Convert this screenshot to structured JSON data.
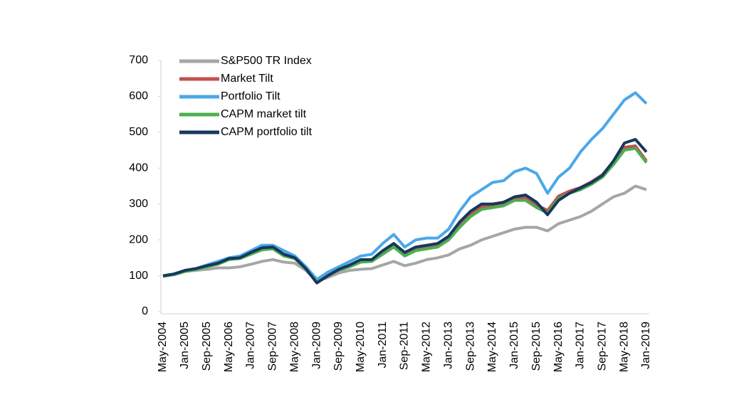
{
  "chart_data": {
    "type": "line",
    "categories": [
      "May-2004",
      null,
      "Jan-2005",
      null,
      "Sep-2005",
      null,
      "May-2006",
      null,
      "Jan-2007",
      null,
      "Sep-2007",
      null,
      "May-2008",
      null,
      "Jan-2009",
      null,
      "Sep-2009",
      null,
      "May-2010",
      null,
      "Jan-2011",
      null,
      "Sep-2011",
      null,
      "May-2012",
      null,
      "Jan-2013",
      null,
      "Sep-2013",
      null,
      "May-2014",
      null,
      "Jan-2015",
      null,
      "Sep-2015",
      null,
      "May-2016",
      null,
      "Jan-2017",
      null,
      "Sep-2017",
      null,
      "May-2018",
      null,
      "Jan-2019"
    ],
    "series": [
      {
        "name": "S&P500 TR Index",
        "color": "#a6a6a6",
        "values": [
          100,
          103,
          112,
          115,
          118,
          122,
          122,
          125,
          132,
          140,
          145,
          138,
          135,
          115,
          85,
          95,
          108,
          115,
          118,
          120,
          130,
          140,
          128,
          135,
          145,
          150,
          158,
          175,
          185,
          200,
          210,
          220,
          230,
          235,
          235,
          225,
          245,
          255,
          265,
          280,
          300,
          320,
          330,
          350,
          340
        ]
      },
      {
        "name": "Market Tilt",
        "color": "#c0504d",
        "values": [
          99,
          104,
          113,
          119,
          127,
          134,
          147,
          150,
          162,
          175,
          178,
          158,
          150,
          120,
          84,
          102,
          117,
          128,
          142,
          143,
          164,
          184,
          160,
          175,
          180,
          185,
          205,
          242,
          272,
          292,
          296,
          301,
          316,
          318,
          298,
          282,
          322,
          336,
          346,
          362,
          382,
          418,
          458,
          462,
          420
        ]
      },
      {
        "name": "Portfolio Tilt",
        "color": "#4aa8e8",
        "values": [
          100,
          105,
          115,
          120,
          130,
          140,
          150,
          155,
          170,
          185,
          185,
          170,
          155,
          125,
          90,
          110,
          125,
          140,
          155,
          160,
          190,
          215,
          180,
          200,
          205,
          205,
          230,
          280,
          320,
          340,
          360,
          365,
          390,
          400,
          385,
          330,
          375,
          400,
          445,
          480,
          510,
          550,
          590,
          610,
          580
        ]
      },
      {
        "name": "CAPM market tilt",
        "color": "#4caf50",
        "values": [
          98,
          103,
          112,
          118,
          125,
          132,
          145,
          148,
          160,
          172,
          175,
          155,
          148,
          118,
          82,
          100,
          115,
          125,
          138,
          140,
          160,
          180,
          155,
          170,
          175,
          180,
          200,
          235,
          265,
          285,
          290,
          295,
          310,
          310,
          290,
          275,
          315,
          330,
          340,
          355,
          375,
          410,
          450,
          455,
          415
        ]
      },
      {
        "name": "CAPM portfolio tilt",
        "color": "#17375e",
        "values": [
          100,
          105,
          115,
          120,
          128,
          135,
          148,
          150,
          165,
          178,
          180,
          160,
          150,
          120,
          80,
          100,
          118,
          130,
          145,
          145,
          170,
          190,
          165,
          180,
          185,
          190,
          210,
          250,
          280,
          300,
          300,
          305,
          320,
          325,
          305,
          270,
          310,
          330,
          345,
          360,
          380,
          420,
          470,
          480,
          445
        ]
      }
    ],
    "ylim": [
      0,
      700
    ],
    "yticks": [
      0,
      100,
      200,
      300,
      400,
      500,
      600,
      700
    ],
    "legend": "upper left",
    "grid": false
  }
}
